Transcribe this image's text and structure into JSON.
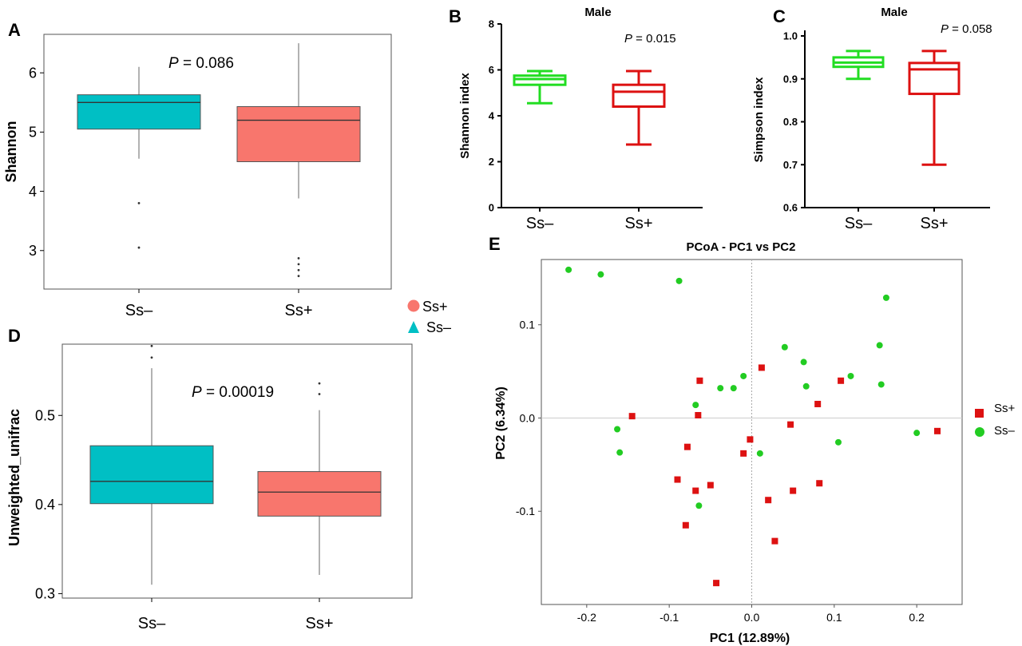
{
  "panel_labels": {
    "a": "A",
    "b": "B",
    "c": "C",
    "d": "D",
    "e": "E"
  },
  "colors": {
    "cyan": "#00BFC4",
    "salmon": "#F8766D",
    "green": "#22DD22",
    "red": "#DD1111",
    "axis": "#000000",
    "frame": "#555555"
  },
  "chart_data": [
    {
      "panel": "A",
      "type": "boxplot",
      "ylabel": "Shannon",
      "ylim": [
        2.35,
        6.65
      ],
      "yticks": [
        3,
        4,
        5,
        6
      ],
      "categories": [
        "Ss–",
        "Ss+"
      ],
      "annotation": {
        "p_letter": "P",
        "p_rest": " = 0.086"
      },
      "boxes": [
        {
          "category": "Ss–",
          "color": "#00BFC4",
          "whisker_low": 4.55,
          "q1": 5.05,
          "median": 5.5,
          "q3": 5.63,
          "whisker_high": 6.1,
          "outliers": [
            3.8,
            3.05
          ]
        },
        {
          "category": "Ss+",
          "color": "#F8766D",
          "whisker_low": 3.88,
          "q1": 4.5,
          "median": 5.2,
          "q3": 5.43,
          "whisker_high": 6.5,
          "outliers": [
            2.87,
            2.77,
            2.67,
            2.57
          ]
        }
      ],
      "legend": [
        {
          "label": "Ss+",
          "marker": "circle",
          "color": "#F8766D"
        },
        {
          "label": "Ss–",
          "marker": "triangle",
          "color": "#00BFC4"
        }
      ]
    },
    {
      "panel": "B",
      "type": "boxplot",
      "title": "Male",
      "ylabel": "Shannon index",
      "ylim": [
        0,
        8
      ],
      "yticks": [
        0,
        2,
        4,
        6,
        8
      ],
      "categories": [
        "Ss–",
        "Ss+"
      ],
      "annotation": {
        "p_letter": "P",
        "p_rest": " = 0.015"
      },
      "boxes": [
        {
          "category": "Ss–",
          "color": "#22DD22",
          "whisker_low": 4.55,
          "q1": 5.35,
          "median": 5.6,
          "q3": 5.75,
          "whisker_high": 5.95
        },
        {
          "category": "Ss+",
          "color": "#DD1111",
          "whisker_low": 2.75,
          "q1": 4.4,
          "median": 5.05,
          "q3": 5.35,
          "whisker_high": 5.95
        }
      ]
    },
    {
      "panel": "C",
      "type": "boxplot",
      "title": "Male",
      "ylabel": "Simpson index",
      "ylim": [
        0.6,
        1.0
      ],
      "yticks": [
        0.6,
        0.7,
        0.8,
        0.9,
        1.0
      ],
      "ytick_labels": [
        "0.6",
        "0.7",
        "0.8",
        "0.9",
        "1.0"
      ],
      "categories": [
        "Ss–",
        "Ss+"
      ],
      "annotation": {
        "p_letter": "P",
        "p_rest": " = 0.058"
      },
      "boxes": [
        {
          "category": "Ss–",
          "color": "#22DD22",
          "whisker_low": 0.9,
          "q1": 0.928,
          "median": 0.938,
          "q3": 0.95,
          "whisker_high": 0.965
        },
        {
          "category": "Ss+",
          "color": "#DD1111",
          "whisker_low": 0.7,
          "q1": 0.865,
          "median": 0.922,
          "q3": 0.937,
          "whisker_high": 0.965
        }
      ]
    },
    {
      "panel": "D",
      "type": "boxplot",
      "ylabel": "Unweighted_unifrac",
      "ylim": [
        0.295,
        0.58
      ],
      "yticks": [
        0.3,
        0.4,
        0.5
      ],
      "ytick_labels": [
        "0.3",
        "0.4",
        "0.5"
      ],
      "categories": [
        "Ss–",
        "Ss+"
      ],
      "annotation": {
        "p_letter": "P",
        "p_rest": " = 0.00019"
      },
      "boxes": [
        {
          "category": "Ss–",
          "color": "#00BFC4",
          "whisker_low": 0.31,
          "q1": 0.401,
          "median": 0.426,
          "q3": 0.466,
          "whisker_high": 0.553,
          "outliers": [
            0.578,
            0.565
          ]
        },
        {
          "category": "Ss+",
          "color": "#F8766D",
          "whisker_low": 0.321,
          "q1": 0.387,
          "median": 0.414,
          "q3": 0.437,
          "whisker_high": 0.506,
          "outliers": [
            0.536,
            0.524
          ]
        }
      ]
    },
    {
      "panel": "E",
      "type": "scatter",
      "title": "PCoA - PC1 vs PC2",
      "xlabel": "PC1 (12.89%)",
      "ylabel": "PC2 (6.34%)",
      "xlim": [
        -0.255,
        0.255
      ],
      "ylim": [
        -0.2,
        0.17
      ],
      "xticks": [
        -0.2,
        -0.1,
        0.0,
        0.1,
        0.2
      ],
      "xtick_labels": [
        "-0.2",
        "-0.1",
        "0.0",
        "0.1",
        "0.2"
      ],
      "yticks": [
        -0.1,
        0.0,
        0.1
      ],
      "ytick_labels": [
        "-0.1",
        "0.0",
        "0.1"
      ],
      "series": [
        {
          "name": "Ss+",
          "marker": "square",
          "color": "#DD1111",
          "points": [
            [
              -0.145,
              0.002
            ],
            [
              -0.063,
              0.04
            ],
            [
              -0.065,
              0.003
            ],
            [
              0.012,
              0.054
            ],
            [
              -0.078,
              -0.031
            ],
            [
              -0.002,
              -0.023
            ],
            [
              -0.01,
              -0.038
            ],
            [
              0.047,
              -0.007
            ],
            [
              0.08,
              0.015
            ],
            [
              0.108,
              0.04
            ],
            [
              -0.09,
              -0.066
            ],
            [
              -0.068,
              -0.078
            ],
            [
              -0.05,
              -0.072
            ],
            [
              0.02,
              -0.088
            ],
            [
              0.05,
              -0.078
            ],
            [
              0.082,
              -0.07
            ],
            [
              -0.08,
              -0.115
            ],
            [
              0.028,
              -0.132
            ],
            [
              -0.043,
              -0.177
            ],
            [
              0.225,
              -0.014
            ]
          ]
        },
        {
          "name": "Ss–",
          "marker": "circle",
          "color": "#22CC22",
          "points": [
            [
              -0.222,
              0.159
            ],
            [
              -0.183,
              0.154
            ],
            [
              -0.088,
              0.147
            ],
            [
              -0.163,
              -0.012
            ],
            [
              -0.16,
              -0.037
            ],
            [
              -0.068,
              0.014
            ],
            [
              -0.038,
              0.032
            ],
            [
              -0.022,
              0.032
            ],
            [
              -0.01,
              0.045
            ],
            [
              0.01,
              -0.038
            ],
            [
              0.04,
              0.076
            ],
            [
              0.063,
              0.06
            ],
            [
              0.066,
              0.034
            ],
            [
              0.12,
              0.045
            ],
            [
              0.155,
              0.078
            ],
            [
              0.157,
              0.036
            ],
            [
              0.163,
              0.129
            ],
            [
              0.105,
              -0.026
            ],
            [
              0.2,
              -0.016
            ],
            [
              -0.064,
              -0.094
            ]
          ]
        }
      ],
      "legend": [
        {
          "label": "Ss+",
          "marker": "square",
          "color": "#DD1111"
        },
        {
          "label": "Ss–",
          "marker": "circle",
          "color": "#22CC22"
        }
      ]
    }
  ]
}
